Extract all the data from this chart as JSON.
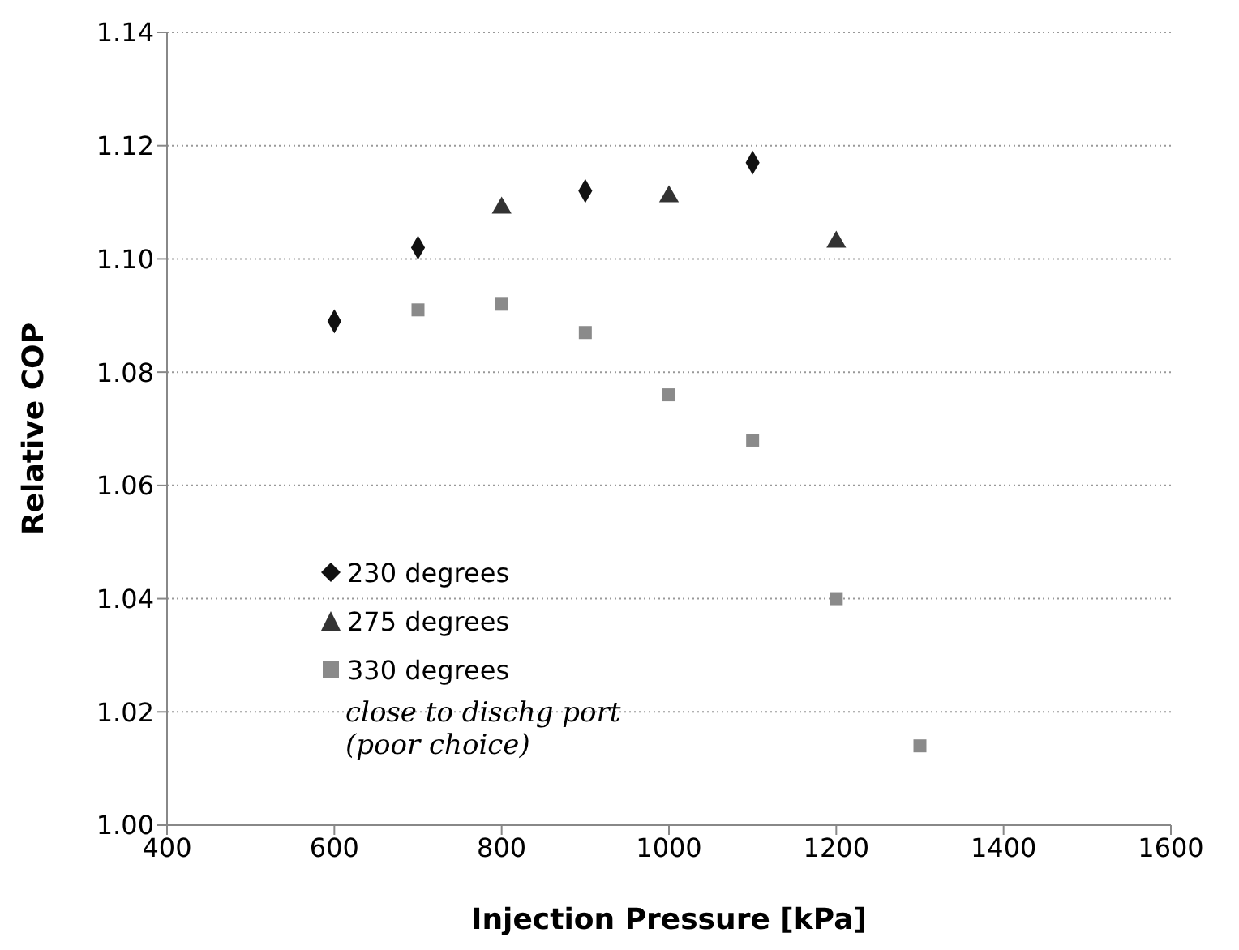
{
  "chart_data": {
    "type": "scatter",
    "xlabel": "Injection Pressure [kPa]",
    "ylabel": "Relative COP",
    "xlim": [
      400,
      1600
    ],
    "xticks": [
      400,
      600,
      800,
      1000,
      1200,
      1400,
      1600
    ],
    "ylim": [
      1.0,
      1.14
    ],
    "yticks": [
      {
        "value": 1.0,
        "label": "1.00"
      },
      {
        "value": 1.02,
        "label": "1.02"
      },
      {
        "value": 1.04,
        "label": "1.04"
      },
      {
        "value": 1.06,
        "label": "1.06"
      },
      {
        "value": 1.08,
        "label": "1.08"
      },
      {
        "value": 1.1,
        "label": "1.10"
      },
      {
        "value": 1.12,
        "label": "1.12"
      },
      {
        "value": 1.14,
        "label": "1.14"
      }
    ],
    "grid": "y",
    "legend": "left",
    "series": [
      {
        "name": "230 degrees",
        "color": "#111111",
        "marker": "diamond",
        "x": [
          600,
          700,
          900,
          1100
        ],
        "values": [
          1.089,
          1.102,
          1.112,
          1.117
        ]
      },
      {
        "name": "275 degrees",
        "color": "#333333",
        "marker": "triangle",
        "x": [
          800,
          1000,
          1200
        ],
        "values": [
          1.109,
          1.111,
          1.103
        ]
      },
      {
        "name": "330 degrees",
        "color": "#8a8a8a",
        "marker": "square",
        "x": [
          700,
          800,
          900,
          1000,
          1100,
          1200,
          1300
        ],
        "values": [
          1.091,
          1.092,
          1.087,
          1.076,
          1.068,
          1.04,
          1.014
        ]
      }
    ],
    "annotations": [
      "close to dischg port (poor choice)"
    ]
  }
}
